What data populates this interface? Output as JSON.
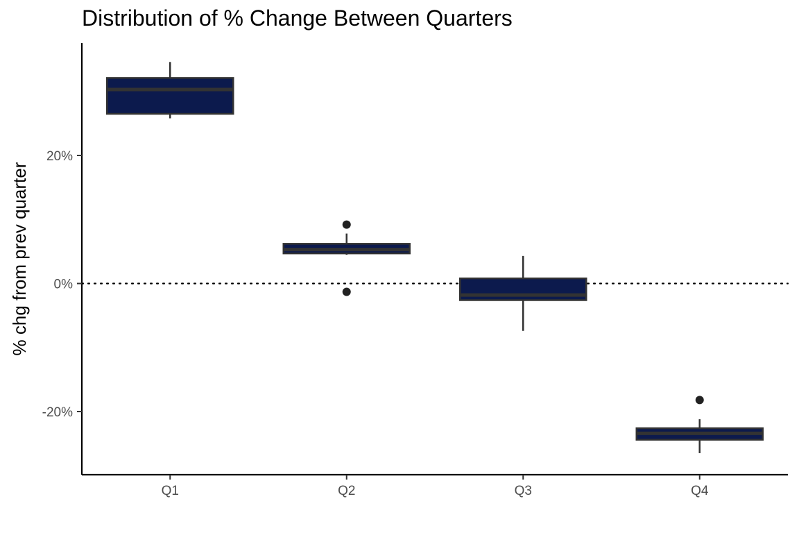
{
  "chart_data": {
    "type": "boxplot",
    "title": "Distribution of % Change Between Quarters",
    "xlabel": "",
    "ylabel": "% chg from prev quarter",
    "categories": [
      "Q1",
      "Q2",
      "Q3",
      "Q4"
    ],
    "y_ticks": [
      -20,
      0,
      20
    ],
    "y_tick_labels": [
      "-20%",
      "0%",
      "20%"
    ],
    "ylim": [
      -29.5,
      37.5
    ],
    "reference_line": {
      "y": 0,
      "style": "dotted"
    },
    "grid": false,
    "legend": "none",
    "boxes": [
      {
        "category": "Q1",
        "whisker_low": 25.8,
        "q1": 26.5,
        "median": 30.3,
        "q3": 32.1,
        "whisker_high": 34.6,
        "outliers": []
      },
      {
        "category": "Q2",
        "whisker_low": 4.5,
        "q1": 4.7,
        "median": 5.3,
        "q3": 6.2,
        "whisker_high": 7.8,
        "outliers": [
          9.2,
          -1.3
        ]
      },
      {
        "category": "Q3",
        "whisker_low": -7.4,
        "q1": -2.6,
        "median": -1.8,
        "q3": 0.8,
        "whisker_high": 4.3,
        "outliers": []
      },
      {
        "category": "Q4",
        "whisker_low": -26.5,
        "q1": -24.4,
        "median": -23.4,
        "q3": -22.6,
        "whisker_high": -21.2,
        "outliers": [
          -18.2
        ]
      }
    ],
    "colors": {
      "box_fill": "#0c1a4d",
      "box_line": "#333333",
      "outlier": "#222222",
      "axis": "#000000"
    }
  }
}
